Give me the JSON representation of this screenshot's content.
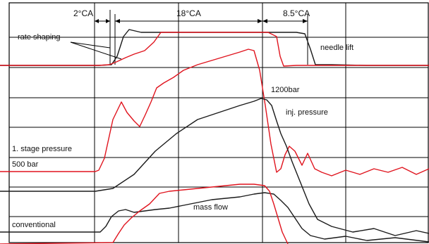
{
  "chart_data": {
    "type": "line",
    "grid": true,
    "annotations": {
      "top_2ca": "2°CA",
      "top_18ca": "18°CA",
      "top_85ca": "8.5°CA",
      "rate_shaping": "rate shaping",
      "needle_lift": "needle lift",
      "p1200": "1200bar",
      "inj_pressure": "inj. pressure",
      "stage_pressure": "1. stage pressure",
      "p500": "500 bar",
      "mass_flow": "mass flow",
      "conventional": "conventional"
    },
    "colors": {
      "rate_shaped": "#e0141e",
      "conventional": "#1a1a1a"
    },
    "series": [
      {
        "group": "needle lift",
        "color": "#1a1a1a",
        "x": [
          0,
          140,
          158,
          166,
          175,
          183,
          200,
          230,
          260,
          300,
          340,
          380,
          420,
          432,
          440,
          447,
          470,
          520,
          608
        ],
        "y": [
          93,
          93,
          92,
          80,
          52,
          42,
          46,
          46,
          46,
          46,
          46,
          46,
          46,
          48,
          70,
          92,
          92,
          93,
          93
        ]
      },
      {
        "group": "needle lift",
        "color": "#e0141e",
        "x": [
          0,
          140,
          155,
          165,
          178,
          190,
          205,
          218,
          228,
          240,
          270,
          300,
          340,
          380,
          392,
          397,
          402,
          420,
          460,
          520,
          608
        ],
        "y": [
          93,
          93,
          92,
          88,
          82,
          77,
          72,
          60,
          46,
          46,
          46,
          46,
          46,
          46,
          52,
          80,
          94,
          93,
          93,
          93,
          93
        ]
      },
      {
        "group": "inj. pressure",
        "color": "#e0141e",
        "x": [
          0,
          135,
          140,
          148,
          160,
          172,
          180,
          190,
          198,
          206,
          214,
          222,
          232,
          246,
          260,
          280,
          300,
          320,
          340,
          352,
          360,
          368,
          376,
          384,
          392,
          398,
          404,
          410,
          418,
          428,
          436,
          446,
          456,
          470,
          490,
          510,
          530,
          550,
          570,
          590,
          608
        ],
        "y": [
          244,
          244,
          242,
          225,
          170,
          145,
          160,
          172,
          180,
          163,
          145,
          125,
          118,
          110,
          100,
          92,
          86,
          80,
          74,
          70,
          72,
          100,
          150,
          205,
          245,
          240,
          220,
          208,
          215,
          235,
          218,
          240,
          245,
          250,
          242,
          248,
          240,
          245,
          238,
          248,
          240
        ]
      },
      {
        "group": "inj. pressure",
        "color": "#1a1a1a",
        "x": [
          0,
          135,
          160,
          190,
          220,
          250,
          280,
          310,
          340,
          360,
          370,
          378,
          385,
          392,
          398,
          406,
          414,
          422,
          430,
          438,
          450,
          470,
          500,
          530,
          560,
          590,
          608
        ],
        "y": [
          272,
          272,
          268,
          248,
          215,
          190,
          170,
          160,
          150,
          144,
          140,
          142,
          150,
          172,
          190,
          208,
          230,
          250,
          270,
          290,
          312,
          322,
          330,
          325,
          335,
          328,
          332
        ]
      },
      {
        "group": "mass flow",
        "color": "#1a1a1a",
        "x": [
          0,
          142,
          150,
          158,
          168,
          178,
          190,
          205,
          220,
          240,
          260,
          280,
          300,
          320,
          340,
          360,
          375,
          388,
          398,
          408,
          418,
          428,
          440,
          460,
          490,
          520,
          560,
          608
        ],
        "y": [
          330,
          330,
          322,
          308,
          300,
          298,
          302,
          300,
          298,
          296,
          292,
          288,
          284,
          282,
          280,
          276,
          274,
          276,
          285,
          295,
          310,
          325,
          335,
          340,
          336,
          342,
          338,
          344
        ]
      },
      {
        "group": "mass flow",
        "color": "#e0141e",
        "x": [
          0,
          160,
          168,
          176,
          186,
          198,
          212,
          226,
          240,
          260,
          280,
          300,
          320,
          340,
          360,
          375,
          382,
          388,
          394,
          400,
          408
        ],
        "y": [
          347,
          345,
          332,
          320,
          310,
          300,
          290,
          275,
          272,
          270,
          268,
          266,
          264,
          262,
          262,
          264,
          272,
          290,
          310,
          330,
          347
        ]
      }
    ]
  }
}
